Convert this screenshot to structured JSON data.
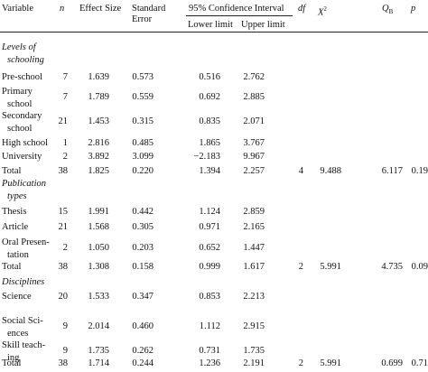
{
  "table": {
    "header": {
      "variable": "Variable",
      "n": "n",
      "effect_size": "Effect Size",
      "standard_error_1": "Standard",
      "standard_error_2": "Error",
      "ci_group": "95% Confidence Interval",
      "lower": "Lower limit",
      "upper": "Upper limit",
      "df": "df",
      "x2_base": "X",
      "x2_sup": "2",
      "qb_base": "Q",
      "qb_sub": "B",
      "p": "p"
    },
    "rows": [
      {
        "kind": "section",
        "label": [
          "Levels of",
          "schooling"
        ]
      },
      {
        "kind": "data",
        "label": [
          "Pre-school"
        ],
        "n": "7",
        "es": "1.639",
        "se": "0.573",
        "lower": "0.516",
        "upper": "2.762"
      },
      {
        "kind": "data",
        "label": [
          "Primary",
          "school"
        ],
        "n": "7",
        "es": "1.789",
        "se": "0.559",
        "lower": "0.692",
        "upper": "2.885"
      },
      {
        "kind": "data",
        "label": [
          "Secondary",
          "school"
        ],
        "n": "21",
        "es": "1.453",
        "se": "0.315",
        "lower": "0.835",
        "upper": "2.071"
      },
      {
        "kind": "data",
        "label": [
          "High school"
        ],
        "n": "1",
        "es": "2.816",
        "se": "0.485",
        "lower": "1.865",
        "upper": "3.767"
      },
      {
        "kind": "data",
        "label": [
          "University"
        ],
        "n": "2",
        "es": "3.892",
        "se": "3.099",
        "lower": "−2.183",
        "upper": "9.967"
      },
      {
        "kind": "total",
        "label": [
          "Total"
        ],
        "n": "38",
        "es": "1.825",
        "se": "0.220",
        "lower": "1.394",
        "upper": "2.257",
        "df": "4",
        "x2": "9.488",
        "qb": "6.117",
        "p": "0.19"
      },
      {
        "kind": "section",
        "label": [
          "Publication",
          "types"
        ]
      },
      {
        "kind": "data",
        "label": [
          "Thesis"
        ],
        "n": "15",
        "es": "1.991",
        "se": "0.442",
        "lower": "1.124",
        "upper": "2.859"
      },
      {
        "kind": "data",
        "label": [
          "Article"
        ],
        "n": "21",
        "es": "1.568",
        "se": "0.305",
        "lower": "0.971",
        "upper": "2.165"
      },
      {
        "kind": "data",
        "label": [
          "Oral Presen-",
          "tation"
        ],
        "n": "2",
        "es": "1.050",
        "se": "0.203",
        "lower": "0.652",
        "upper": "1.447"
      },
      {
        "kind": "total",
        "label": [
          "Total"
        ],
        "n": "38",
        "es": "1.308",
        "se": "0.158",
        "lower": "0.999",
        "upper": "1.617",
        "df": "2",
        "x2": "5.991",
        "qb": "4.735",
        "p": "0.09"
      },
      {
        "kind": "section",
        "label": [
          "Disciplines"
        ]
      },
      {
        "kind": "data",
        "label": [
          "Science"
        ],
        "n": "20",
        "es": "1.533",
        "se": "0.347",
        "lower": "0.853",
        "upper": "2.213"
      },
      {
        "kind": "data",
        "label": [
          "Social Sci-",
          "ences"
        ],
        "n": "9",
        "es": "2.014",
        "se": "0.460",
        "lower": "1.112",
        "upper": "2.915"
      },
      {
        "kind": "data",
        "label": [
          "Skill teach-",
          "ing"
        ],
        "n": "9",
        "es": "1.735",
        "se": "0.262",
        "lower": "0.731",
        "upper": "1.735"
      },
      {
        "kind": "total",
        "label": [
          "Total"
        ],
        "n": "38",
        "es": "1.714",
        "se": "0.244",
        "lower": "1.236",
        "upper": "2.191",
        "df": "2",
        "x2": "5.991",
        "qb": "0.699",
        "p": "0.71"
      }
    ]
  }
}
